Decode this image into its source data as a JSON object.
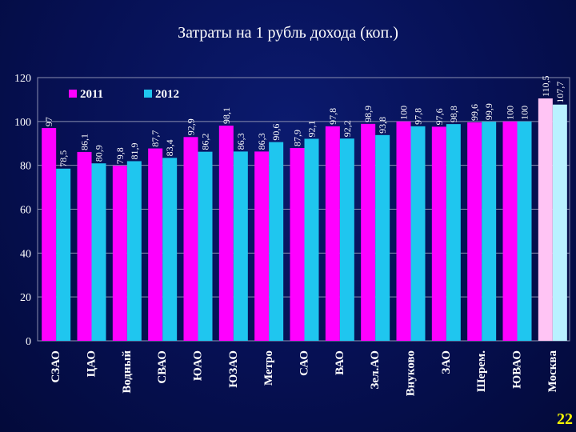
{
  "title": "Затраты на 1 рубль дохода (коп.)",
  "page_number": "22",
  "colors": {
    "series_2011": "#ff00ff",
    "series_2012": "#1fc6ef",
    "highlight_2011": "#ffc4f4",
    "highlight_2012": "#b9f1ff",
    "background": "#061053",
    "grid": "#8a8fb0"
  },
  "chart_data": {
    "type": "bar",
    "title": "Затраты на 1 рубль дохода (коп.)",
    "xlabel": "",
    "ylabel": "",
    "ylim": [
      0,
      120
    ],
    "yticks": [
      "0",
      "20",
      "40",
      "60",
      "80",
      "100",
      "120"
    ],
    "grid": true,
    "legend_position": "top-left",
    "categories": [
      "СЗАО",
      "ЦАО",
      "Водный",
      "СВАО",
      "ЮАО",
      "ЮЗАО",
      "Метро",
      "САО",
      "ВАО",
      "Зел.АО",
      "Внуково",
      "ЗАО",
      "Шерем.",
      "ЮВАО",
      "Москва"
    ],
    "highlighted_category": "Москва",
    "series": [
      {
        "name": "2011",
        "values": [
          97,
          86.1,
          79.8,
          87.7,
          92.9,
          98.1,
          86.3,
          87.9,
          97.8,
          98.9,
          100,
          97.6,
          99.6,
          100,
          110.5
        ],
        "labels": [
          "97",
          "86,1",
          "79,8",
          "87,7",
          "92,9",
          "98,1",
          "86,3",
          "87,9",
          "97,8",
          "98,9",
          "100",
          "97,6",
          "99,6",
          "100",
          "110,5"
        ]
      },
      {
        "name": "2012",
        "values": [
          78.5,
          80.9,
          81.9,
          83.4,
          86.2,
          86.3,
          90.6,
          92.1,
          92.2,
          93.8,
          97.8,
          98.8,
          99.9,
          100,
          107.7
        ],
        "labels": [
          "78,5",
          "80,9",
          "81,9",
          "83,4",
          "86,2",
          "86,3",
          "90,6",
          "92,1",
          "92,2",
          "93,8",
          "97,8",
          "98,8",
          "99,9",
          "100",
          "107,7"
        ]
      }
    ]
  }
}
